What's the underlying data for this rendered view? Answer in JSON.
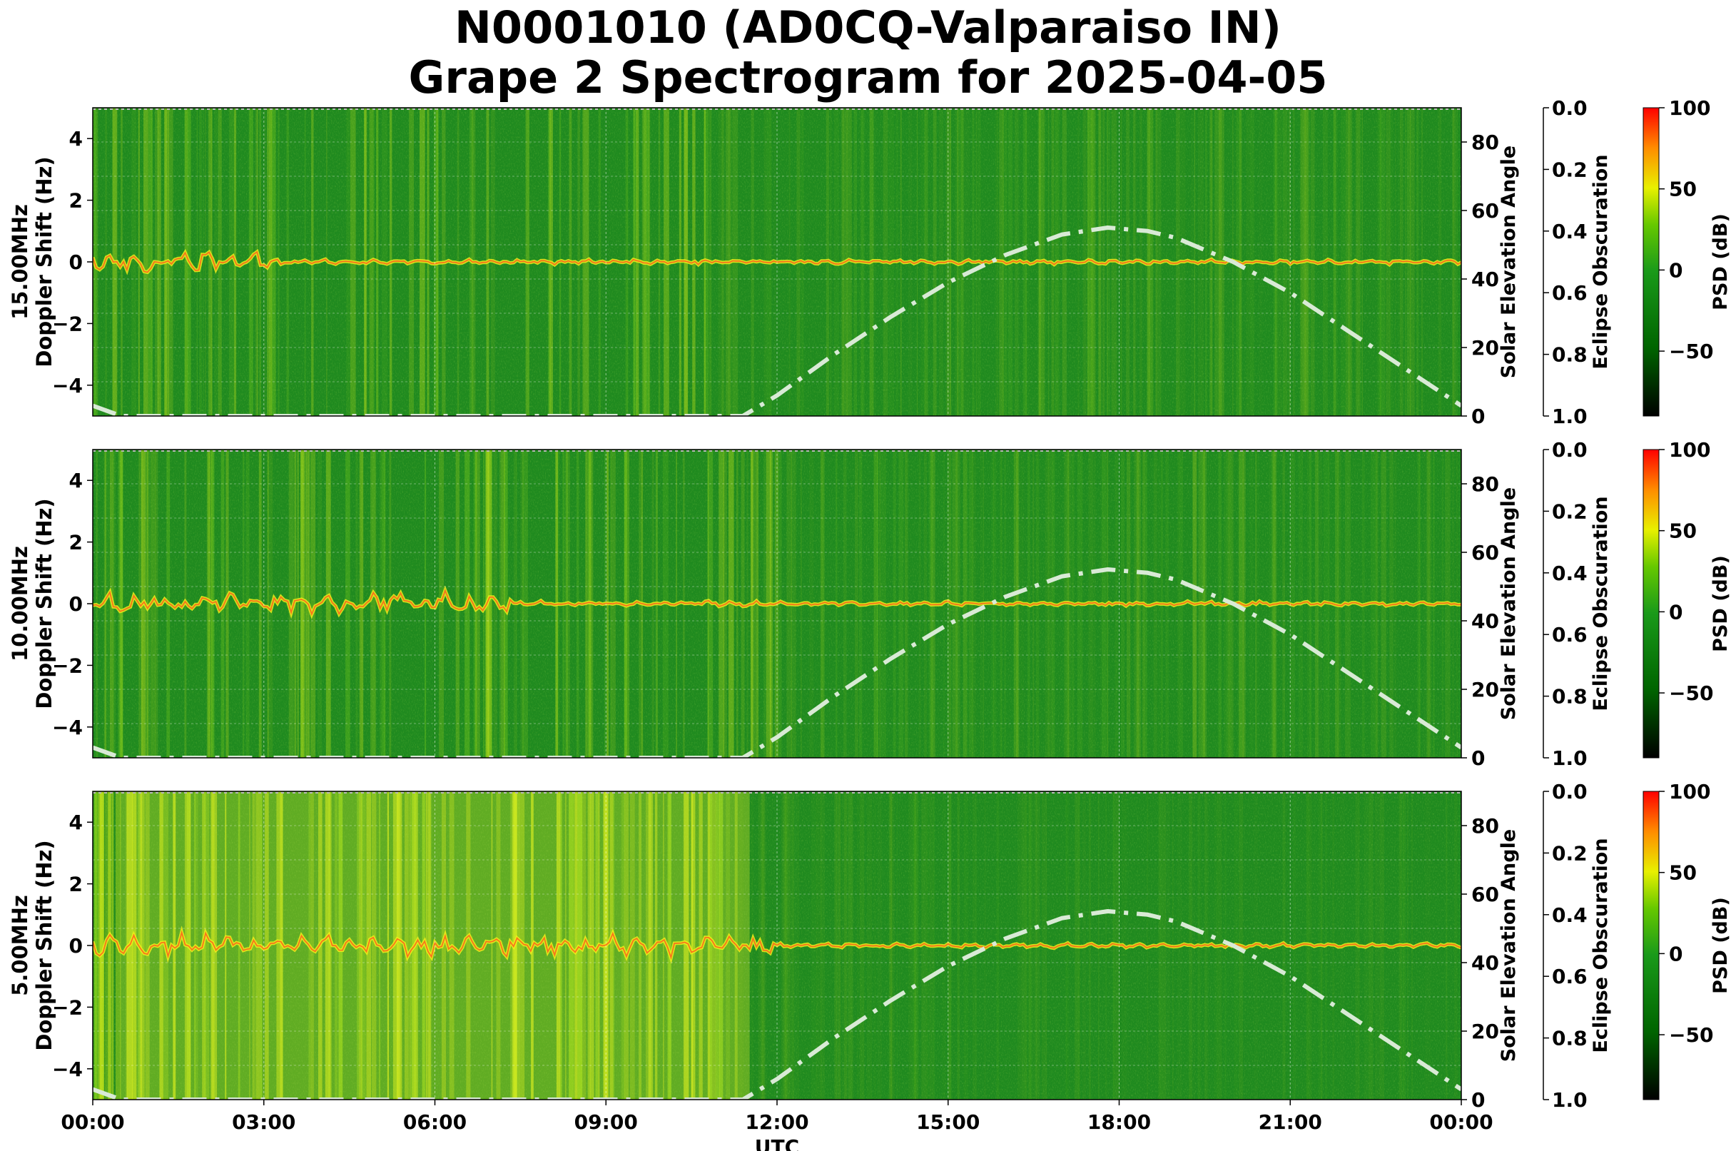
{
  "title_line1": "N0001010 (AD0CQ-Valparaiso IN)",
  "title_line2": "Grape 2 Spectrogram for 2025-04-05",
  "colors": {
    "spectrogram_base": "#1f8a1f",
    "psd_colormap": [
      "#000000",
      "#006400",
      "#1a9a1a",
      "#66c800",
      "#e8f000",
      "#ff8c00",
      "#ff0000"
    ],
    "solar_curve": "#d9ead6"
  },
  "chart_data": [
    {
      "type": "heatmap",
      "panel": "15.00MHz",
      "ylabel": "15.00MHz\nDoppler Shift (Hz)",
      "ylim": [
        -5,
        5
      ],
      "y_ticks": [
        "4",
        "2",
        "0",
        "−2",
        "−4"
      ],
      "right_axis_label": "Solar Elevation Angle",
      "right_axis_lim": [
        0,
        90
      ],
      "right_axis_ticks": [
        "80",
        "60",
        "40",
        "20",
        "0"
      ],
      "obscuration_label": "Eclipse Obscuration",
      "obscuration_ticks": [
        "0.0",
        "0.2",
        "0.4",
        "0.6",
        "0.8",
        "1.0"
      ],
      "colorbar_label": "PSD (dB)",
      "colorbar_ticks": [
        "100",
        "50",
        "0",
        "−50"
      ],
      "colorbar_lim": [
        -90,
        100
      ]
    },
    {
      "type": "heatmap",
      "panel": "10.00MHz",
      "ylabel": "10.00MHz\nDoppler Shift (Hz)",
      "ylim": [
        -5,
        5
      ],
      "y_ticks": [
        "4",
        "2",
        "0",
        "−2",
        "−4"
      ],
      "right_axis_label": "Solar Elevation Angle",
      "right_axis_lim": [
        0,
        90
      ],
      "right_axis_ticks": [
        "80",
        "60",
        "40",
        "20",
        "0"
      ],
      "obscuration_label": "Eclipse Obscuration",
      "obscuration_ticks": [
        "0.0",
        "0.2",
        "0.4",
        "0.6",
        "0.8",
        "1.0"
      ],
      "colorbar_label": "PSD (dB)",
      "colorbar_ticks": [
        "100",
        "50",
        "0",
        "−50"
      ],
      "colorbar_lim": [
        -90,
        100
      ]
    },
    {
      "type": "heatmap",
      "panel": "5.00MHz",
      "ylabel": "5.00MHz\nDoppler Shift (Hz)",
      "ylim": [
        -5,
        5
      ],
      "y_ticks": [
        "4",
        "2",
        "0",
        "−2",
        "−4"
      ],
      "right_axis_label": "Solar Elevation Angle",
      "right_axis_lim": [
        0,
        90
      ],
      "right_axis_ticks": [
        "80",
        "60",
        "40",
        "20",
        "0"
      ],
      "obscuration_label": "Eclipse Obscuration",
      "obscuration_ticks": [
        "0.0",
        "0.2",
        "0.4",
        "0.6",
        "0.8",
        "1.0"
      ],
      "colorbar_label": "PSD (dB)",
      "colorbar_ticks": [
        "100",
        "50",
        "0",
        "−50"
      ],
      "colorbar_lim": [
        -90,
        100
      ]
    }
  ],
  "x_axis": {
    "label": "UTC",
    "ticks": [
      "00:00",
      "03:00",
      "06:00",
      "09:00",
      "12:00",
      "15:00",
      "18:00",
      "21:00",
      "00:00"
    ]
  },
  "solar_elevation_curve": {
    "hours": [
      0,
      0.5,
      11.4,
      12,
      13,
      14,
      15,
      16,
      17,
      17.8,
      18.5,
      19,
      20,
      21,
      22,
      23,
      24
    ],
    "degrees": [
      3,
      0,
      0,
      6,
      18,
      29,
      39,
      47,
      53,
      55,
      54,
      52,
      45,
      36,
      25,
      14,
      3
    ]
  }
}
